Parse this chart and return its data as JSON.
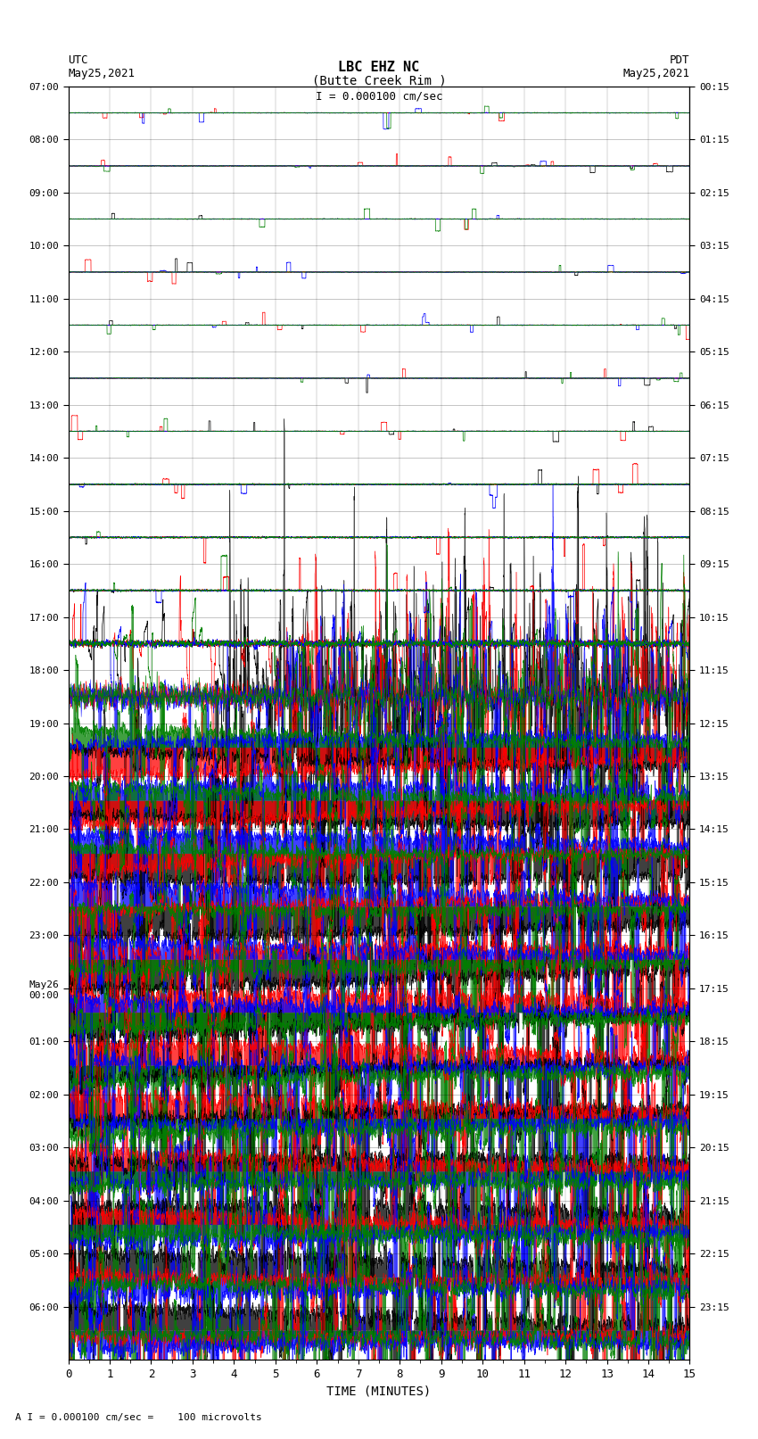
{
  "title_line1": "LBC EHZ NC",
  "title_line2": "(Butte Creek Rim )",
  "scale_label": "I = 0.000100 cm/sec",
  "left_label_top": "UTC",
  "left_label_date": "May25,2021",
  "right_label_top": "PDT",
  "right_label_date": "May25,2021",
  "xlabel": "TIME (MINUTES)",
  "footer": "A I = 0.000100 cm/sec =    100 microvolts",
  "utc_times": [
    "07:00",
    "08:00",
    "09:00",
    "10:00",
    "11:00",
    "12:00",
    "13:00",
    "14:00",
    "15:00",
    "16:00",
    "17:00",
    "18:00",
    "19:00",
    "20:00",
    "21:00",
    "22:00",
    "23:00",
    "May26\n00:00",
    "01:00",
    "02:00",
    "03:00",
    "04:00",
    "05:00",
    "06:00"
  ],
  "pdt_times": [
    "00:15",
    "01:15",
    "02:15",
    "03:15",
    "04:15",
    "05:15",
    "06:15",
    "07:15",
    "08:15",
    "09:15",
    "10:15",
    "11:15",
    "12:15",
    "13:15",
    "14:15",
    "15:15",
    "16:15",
    "17:15",
    "18:15",
    "19:15",
    "20:15",
    "21:15",
    "22:15",
    "23:15"
  ],
  "n_rows": 24,
  "n_minutes": 15,
  "background_color": "#ffffff",
  "colors": [
    "black",
    "red",
    "blue",
    "green"
  ],
  "seed": 42
}
